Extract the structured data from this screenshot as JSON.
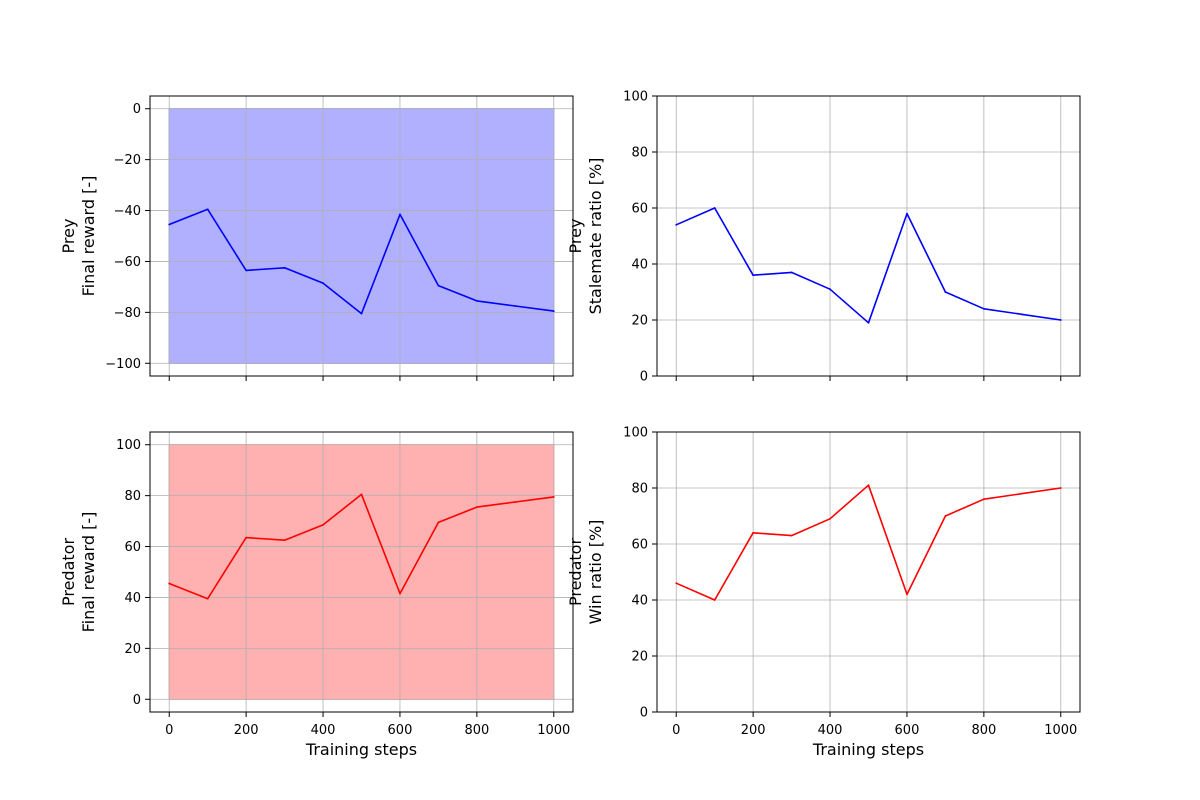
{
  "chart_data": [
    {
      "id": "prey-reward",
      "type": "line",
      "series": [
        {
          "name": "Prey final reward",
          "x": [
            0,
            100,
            200,
            300,
            400,
            500,
            600,
            700,
            800,
            900,
            1000
          ],
          "values": [
            -45.5,
            -39.5,
            -63.5,
            -62.5,
            -68.5,
            -80.5,
            -41.5,
            -69.5,
            -75.5,
            -77.5,
            -79.5
          ],
          "color": "#0000ff"
        }
      ],
      "band": {
        "x": [
          0,
          1000
        ],
        "y": [
          -100,
          0
        ],
        "color": "#b0b0ff"
      },
      "ylabel_lines": [
        "Prey",
        "Final reward [-]"
      ],
      "xlabel": "",
      "xlim": [
        -50,
        1050
      ],
      "ylim": [
        -105,
        5
      ],
      "xticks": [
        0,
        200,
        400,
        600,
        800,
        1000
      ],
      "yticks": [
        -100,
        -80,
        -60,
        -40,
        -20,
        0
      ],
      "show_xtick_labels": false,
      "grid": true
    },
    {
      "id": "prey-stalemate",
      "type": "line",
      "series": [
        {
          "name": "Prey stalemate ratio",
          "x": [
            0,
            100,
            200,
            300,
            400,
            500,
            600,
            700,
            800,
            900,
            1000
          ],
          "values": [
            54,
            60,
            36,
            37,
            31,
            19,
            58,
            30,
            24,
            22,
            20
          ],
          "color": "#0000ff"
        }
      ],
      "ylabel_lines": [
        "Prey",
        "Stalemate ratio [%]"
      ],
      "xlabel": "",
      "xlim": [
        -50,
        1050
      ],
      "ylim": [
        0,
        100
      ],
      "xticks": [
        0,
        200,
        400,
        600,
        800,
        1000
      ],
      "yticks": [
        0,
        20,
        40,
        60,
        80,
        100
      ],
      "show_xtick_labels": false,
      "grid": true
    },
    {
      "id": "predator-reward",
      "type": "line",
      "series": [
        {
          "name": "Predator final reward",
          "x": [
            0,
            100,
            200,
            300,
            400,
            500,
            600,
            700,
            800,
            900,
            1000
          ],
          "values": [
            45.5,
            39.5,
            63.5,
            62.5,
            68.5,
            80.5,
            41.5,
            69.5,
            75.5,
            77.5,
            79.5
          ],
          "color": "#ff0000"
        }
      ],
      "band": {
        "x": [
          0,
          1000
        ],
        "y": [
          0,
          100
        ],
        "color": "#ffb0b0"
      },
      "ylabel_lines": [
        "Predator",
        "Final reward [-]"
      ],
      "xlabel": "Training steps",
      "xlim": [
        -50,
        1050
      ],
      "ylim": [
        -5,
        105
      ],
      "xticks": [
        0,
        200,
        400,
        600,
        800,
        1000
      ],
      "yticks": [
        0,
        20,
        40,
        60,
        80,
        100
      ],
      "show_xtick_labels": true,
      "grid": true
    },
    {
      "id": "predator-win",
      "type": "line",
      "series": [
        {
          "name": "Predator win ratio",
          "x": [
            0,
            100,
            200,
            300,
            400,
            500,
            600,
            700,
            800,
            900,
            1000
          ],
          "values": [
            46,
            40,
            64,
            63,
            69,
            81,
            42,
            70,
            76,
            78,
            80
          ],
          "color": "#ff0000"
        }
      ],
      "ylabel_lines": [
        "Predator",
        "Win ratio [%]"
      ],
      "xlabel": "Training steps",
      "xlim": [
        -50,
        1050
      ],
      "ylim": [
        0,
        100
      ],
      "xticks": [
        0,
        200,
        400,
        600,
        800,
        1000
      ],
      "yticks": [
        0,
        20,
        40,
        60,
        80,
        100
      ],
      "show_xtick_labels": true,
      "grid": true
    }
  ]
}
